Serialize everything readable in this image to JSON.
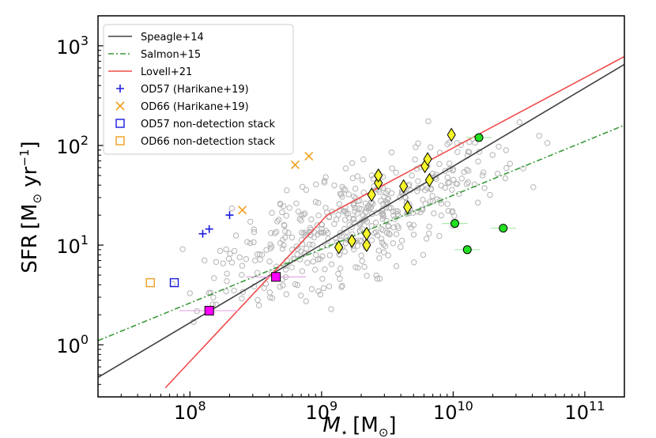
{
  "chart_data": {
    "type": "scatter",
    "xscale": "log",
    "yscale": "log",
    "xlim": [
      20000000,
      200000000000
    ],
    "ylim": [
      0.3,
      2000
    ],
    "xlabel": {
      "main": "M",
      "sub": "⋆",
      "unit": "[M",
      "sun": "⊙",
      "close": "]"
    },
    "ylabel": {
      "main": "SFR",
      "unit": "[M",
      "sun": "⊙",
      "rest": " yr",
      "exp": "−1",
      "close": "]"
    },
    "x_ticks": [
      {
        "value": 100000000,
        "base": "10",
        "exp": "8"
      },
      {
        "value": 1000000000,
        "base": "10",
        "exp": "9"
      },
      {
        "value": 10000000000,
        "base": "10",
        "exp": "10"
      },
      {
        "value": 100000000000,
        "base": "10",
        "exp": "11"
      }
    ],
    "y_ticks": [
      {
        "value": 1,
        "base": "10",
        "exp": "0"
      },
      {
        "value": 10,
        "base": "10",
        "exp": "1"
      },
      {
        "value": 100,
        "base": "10",
        "exp": "2"
      },
      {
        "value": 1000,
        "base": "10",
        "exp": "3"
      }
    ],
    "lines": [
      {
        "name": "Speagle+14",
        "color": "#404040",
        "dash": "",
        "points": [
          [
            20000000,
            0.47
          ],
          [
            200000000000,
            650
          ]
        ]
      },
      {
        "name": "Salmon+15",
        "color": "#3a9a3a",
        "dash": "7,3,2,3",
        "points": [
          [
            20000000,
            1.1
          ],
          [
            200000000000,
            160
          ]
        ]
      },
      {
        "name": "Lovell+21",
        "color": "#f04a4a",
        "dash": "",
        "points": [
          [
            65000000,
            0.37
          ],
          [
            1100000000,
            20
          ],
          [
            200000000000,
            780
          ]
        ]
      }
    ],
    "series": [
      {
        "name": "OD57 (Harikane+19)",
        "marker": "plus",
        "color": "#1a1adf",
        "points": [
          [
            125000000,
            13
          ],
          [
            140000000,
            14.5
          ],
          [
            200000000,
            20
          ]
        ]
      },
      {
        "name": "OD66 (Harikane+19)",
        "marker": "x",
        "color": "#f0a020",
        "points": [
          [
            250000000,
            22.5
          ],
          [
            630000000,
            64
          ],
          [
            800000000,
            78
          ]
        ]
      },
      {
        "name": "OD57 non-detection stack",
        "marker": "open-square",
        "color": "#1a1adf",
        "points": [
          [
            76000000,
            4.2
          ]
        ]
      },
      {
        "name": "OD66 non-detection stack",
        "marker": "open-square",
        "color": "#f0a020",
        "points": [
          [
            50000000,
            4.2
          ]
        ]
      },
      {
        "name": "magenta stacks",
        "marker": "filled-square",
        "color": "#ff00ff",
        "points": [
          [
            140000000,
            2.2
          ],
          [
            450000000,
            4.8
          ]
        ]
      },
      {
        "name": "yellow diamonds",
        "marker": "diamond",
        "color": "#f5f52a",
        "points": [
          [
            1350000000,
            9.5
          ],
          [
            1700000000,
            11
          ],
          [
            2200000000,
            10
          ],
          [
            2200000000,
            13
          ],
          [
            2400000000,
            32
          ],
          [
            2700000000,
            42
          ],
          [
            2700000000,
            50
          ],
          [
            4200000000,
            39
          ],
          [
            4500000000,
            24
          ],
          [
            6100000000,
            62
          ],
          [
            6400000000,
            73
          ],
          [
            6600000000,
            45
          ],
          [
            9700000000,
            128
          ]
        ]
      },
      {
        "name": "green circles",
        "marker": "circle",
        "color": "#22e022",
        "points": [
          [
            10300000000,
            16.5
          ],
          [
            12800000000,
            9
          ],
          [
            15700000000,
            120
          ],
          [
            24000000000,
            14.8
          ]
        ]
      }
    ],
    "legend": {
      "position": "top-left",
      "entries": [
        {
          "label": "Speagle+14",
          "kind": "line",
          "color": "#404040",
          "dash": ""
        },
        {
          "label": "Salmon+15",
          "kind": "line",
          "color": "#3a9a3a",
          "dash": "7,3,2,3"
        },
        {
          "label": "Lovell+21",
          "kind": "line",
          "color": "#f04a4a",
          "dash": ""
        },
        {
          "label": "OD57 (Harikane+19)",
          "kind": "plus",
          "color": "#1a1adf"
        },
        {
          "label": "OD66 (Harikane+19)",
          "kind": "x",
          "color": "#f0a020"
        },
        {
          "label": "OD57 non-detection stack",
          "kind": "open-square",
          "color": "#1a1adf"
        },
        {
          "label": "OD66 non-detection stack",
          "kind": "open-square",
          "color": "#f0a020"
        }
      ]
    },
    "background_cloud": {
      "marker": "open-circle",
      "color": "#b4b4b4",
      "count": 480
    }
  }
}
